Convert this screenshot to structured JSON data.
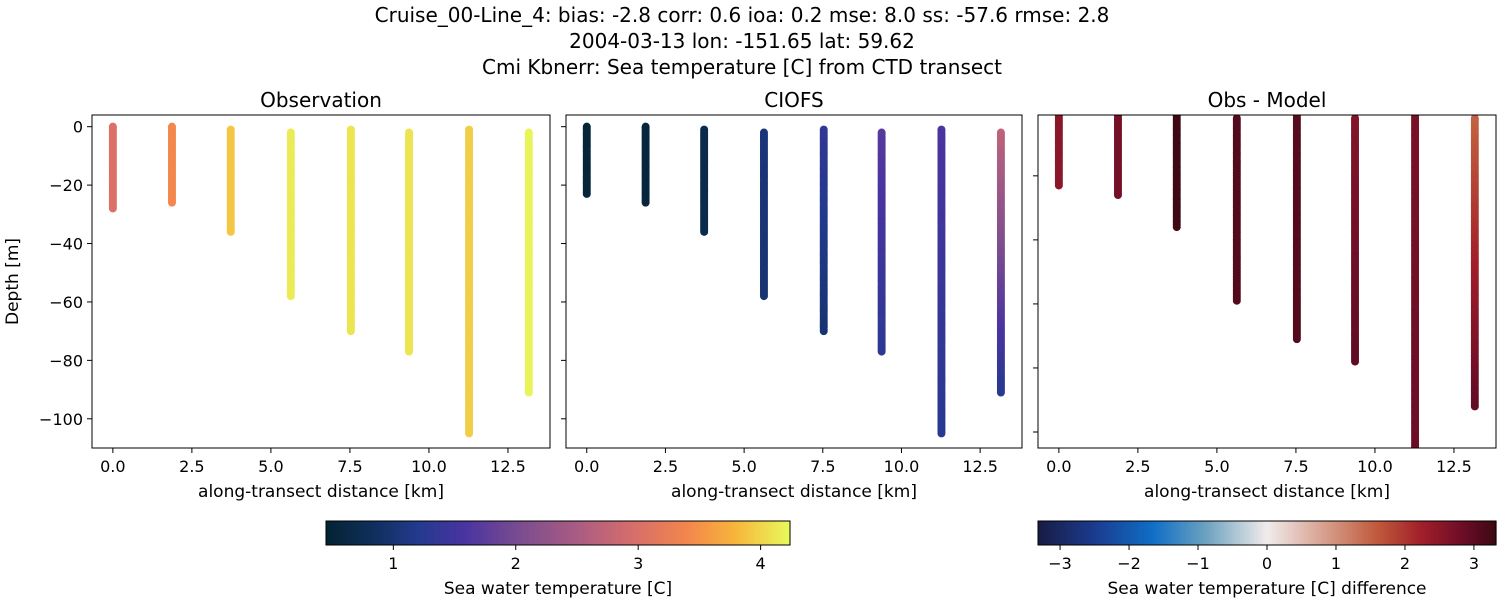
{
  "suptitle": {
    "line1": "Cruise_00-Line_4: bias: -2.8  corr: 0.6  ioa: 0.2  mse: 8.0  ss: -57.6  rmse: 2.8",
    "line2": "2004-03-13 lon: -151.65 lat: 59.62",
    "line3": "Cmi Kbnerr: Sea temperature [C] from CTD transect"
  },
  "chart_data": [
    {
      "type": "scatter",
      "title": "Observation",
      "xlabel": "along-transect distance [km]",
      "ylabel": "Depth [m]",
      "xlim": [
        -0.66,
        13.83
      ],
      "ylim": [
        -110,
        4
      ],
      "xticks": [
        "0.0",
        "2.5",
        "5.0",
        "7.5",
        "10.0",
        "12.5"
      ],
      "yticks": [
        "0",
        "−20",
        "−40",
        "−60",
        "−80",
        "−100"
      ],
      "colormap": "thermal",
      "clim": [
        0.45,
        4.24
      ],
      "profiles": [
        {
          "x": 0.0,
          "top": 0,
          "bottom": -28,
          "value_top": 3.0,
          "value_bottom": 3.0
        },
        {
          "x": 1.87,
          "top": 0,
          "bottom": -26,
          "value_top": 3.4,
          "value_bottom": 3.4
        },
        {
          "x": 3.73,
          "top": -1,
          "bottom": -36,
          "value_top": 3.9,
          "value_bottom": 3.9
        },
        {
          "x": 5.63,
          "top": -2,
          "bottom": -58,
          "value_top": 4.15,
          "value_bottom": 4.15
        },
        {
          "x": 7.53,
          "top": -1,
          "bottom": -70,
          "value_top": 4.1,
          "value_bottom": 4.1
        },
        {
          "x": 9.37,
          "top": -2,
          "bottom": -77,
          "value_top": 4.1,
          "value_bottom": 4.1
        },
        {
          "x": 11.27,
          "top": -1,
          "bottom": -105,
          "value_top": 3.95,
          "value_bottom": 3.95
        },
        {
          "x": 13.16,
          "top": -2,
          "bottom": -91,
          "value_top": 4.2,
          "value_bottom": 4.2
        }
      ]
    },
    {
      "type": "scatter",
      "title": "CIOFS",
      "xlabel": "along-transect distance [km]",
      "xlim": [
        -0.66,
        13.83
      ],
      "ylim": [
        -110,
        4
      ],
      "xticks": [
        "0.0",
        "2.5",
        "5.0",
        "7.5",
        "10.0",
        "12.5"
      ],
      "colormap": "thermal",
      "clim": [
        0.45,
        4.24
      ],
      "profiles": [
        {
          "x": 0.0,
          "top": 0,
          "bottom": -23,
          "value_top": 0.5,
          "value_bottom": 0.5
        },
        {
          "x": 1.87,
          "top": 0,
          "bottom": -26,
          "value_top": 0.55,
          "value_bottom": 0.55
        },
        {
          "x": 3.73,
          "top": -1,
          "bottom": -36,
          "value_top": 0.7,
          "value_bottom": 0.7
        },
        {
          "x": 5.63,
          "top": -2,
          "bottom": -58,
          "value_top": 1.05,
          "value_bottom": 1.0
        },
        {
          "x": 7.53,
          "top": -1,
          "bottom": -70,
          "value_top": 1.35,
          "value_bottom": 1.0
        },
        {
          "x": 9.37,
          "top": -2,
          "bottom": -77,
          "value_top": 1.7,
          "value_bottom": 1.3
        },
        {
          "x": 11.27,
          "top": -1,
          "bottom": -105,
          "value_top": 1.6,
          "value_bottom": 1.25
        },
        {
          "x": 13.16,
          "top": -2,
          "bottom": -91,
          "value_top": 2.7,
          "value_bottom": 1.25
        }
      ]
    },
    {
      "type": "scatter",
      "title": "Obs - Model",
      "xlabel": "along-transect distance [km]",
      "xlim": [
        -0.66,
        13.83
      ],
      "ylim": [
        -105,
        -1
      ],
      "xticks": [
        "0.0",
        "2.5",
        "5.0",
        "7.5",
        "10.0",
        "12.5"
      ],
      "yticks_values": [
        -20,
        -40,
        -60,
        -80,
        -100
      ],
      "colormap": "balance",
      "clim": [
        -3.32,
        3.32
      ],
      "profiles": [
        {
          "x": 0.0,
          "top": 0,
          "bottom": -23,
          "value_top": 2.5,
          "value_bottom": 2.5
        },
        {
          "x": 1.87,
          "top": 0,
          "bottom": -26,
          "value_top": 2.75,
          "value_bottom": 2.75
        },
        {
          "x": 3.73,
          "top": 0,
          "bottom": -36,
          "value_top": 3.3,
          "value_bottom": 3.3
        },
        {
          "x": 5.63,
          "top": -2,
          "bottom": -59,
          "value_top": 3.1,
          "value_bottom": 3.1
        },
        {
          "x": 7.53,
          "top": 0,
          "bottom": -71,
          "value_top": 3.05,
          "value_bottom": 3.1
        },
        {
          "x": 9.37,
          "top": -2,
          "bottom": -78,
          "value_top": 2.6,
          "value_bottom": 2.95
        },
        {
          "x": 11.27,
          "top": 0,
          "bottom": -110,
          "value_top": 2.7,
          "value_bottom": 2.85
        },
        {
          "x": 13.16,
          "top": -2,
          "bottom": -92,
          "value_top": 1.5,
          "value_bottom": 2.95
        }
      ]
    }
  ],
  "colorbars": [
    {
      "label": "Sea water temperature [C]",
      "colormap": "thermal",
      "range": [
        0.45,
        4.24
      ],
      "ticks": [
        "1",
        "2",
        "3",
        "4"
      ],
      "tick_values": [
        1,
        2,
        3,
        4
      ]
    },
    {
      "label": "Sea water temperature [C] difference",
      "colormap": "balance",
      "range": [
        -3.32,
        3.32
      ],
      "ticks": [
        "−3",
        "−2",
        "−1",
        "0",
        "1",
        "2",
        "3"
      ],
      "tick_values": [
        -3,
        -2,
        -1,
        0,
        1,
        2,
        3
      ]
    }
  ]
}
